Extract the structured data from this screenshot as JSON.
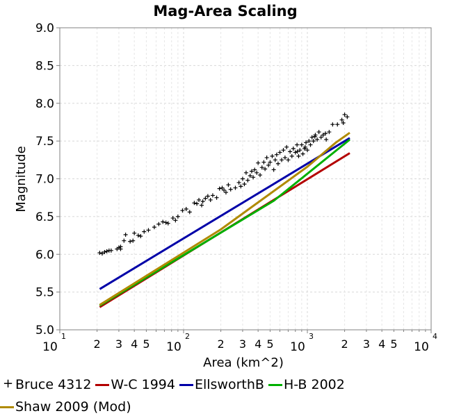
{
  "chart_data": {
    "type": "scatter",
    "title": "Mag-Area Scaling",
    "xlabel": "Area (km^2)",
    "ylabel": "Magnitude",
    "xscale": "log",
    "xlim": [
      10,
      10000
    ],
    "ylim": [
      5.0,
      9.0
    ],
    "yticks": [
      "5.0",
      "5.5",
      "6.0",
      "6.5",
      "7.0",
      "7.5",
      "8.0",
      "8.5",
      "9.0"
    ],
    "xticks_major": [
      {
        "base": "10",
        "exp": "1",
        "value": 10
      },
      {
        "base": "10",
        "exp": "2",
        "value": 100
      },
      {
        "base": "10",
        "exp": "3",
        "value": 1000
      },
      {
        "base": "10",
        "exp": "4",
        "value": 10000
      }
    ],
    "xticks_minor_labels": [
      "2",
      "3",
      "4",
      "5"
    ],
    "grid": true,
    "legend_position": "bottom",
    "series": [
      {
        "name": "Bruce 4312",
        "kind": "scatter",
        "color": "#000000",
        "points": [
          [
            21,
            6.02
          ],
          [
            22,
            6.01
          ],
          [
            23,
            6.03
          ],
          [
            24,
            6.04
          ],
          [
            25,
            6.05
          ],
          [
            26,
            6.05
          ],
          [
            29,
            6.07
          ],
          [
            30,
            6.09
          ],
          [
            31,
            6.1
          ],
          [
            31,
            6.07
          ],
          [
            33,
            6.18
          ],
          [
            34,
            6.26
          ],
          [
            37,
            6.17
          ],
          [
            39,
            6.18
          ],
          [
            40,
            6.28
          ],
          [
            43,
            6.25
          ],
          [
            45,
            6.24
          ],
          [
            48,
            6.3
          ],
          [
            52,
            6.32
          ],
          [
            58,
            6.36
          ],
          [
            63,
            6.4
          ],
          [
            68,
            6.43
          ],
          [
            72,
            6.42
          ],
          [
            75,
            6.41
          ],
          [
            82,
            6.48
          ],
          [
            86,
            6.45
          ],
          [
            90,
            6.5
          ],
          [
            98,
            6.58
          ],
          [
            105,
            6.6
          ],
          [
            112,
            6.56
          ],
          [
            122,
            6.68
          ],
          [
            128,
            6.67
          ],
          [
            133,
            6.72
          ],
          [
            140,
            6.65
          ],
          [
            143,
            6.7
          ],
          [
            150,
            6.74
          ],
          [
            157,
            6.77
          ],
          [
            165,
            6.72
          ],
          [
            172,
            6.78
          ],
          [
            185,
            6.75
          ],
          [
            195,
            6.87
          ],
          [
            205,
            6.88
          ],
          [
            212,
            6.85
          ],
          [
            220,
            6.82
          ],
          [
            230,
            6.92
          ],
          [
            240,
            6.86
          ],
          [
            262,
            6.88
          ],
          [
            280,
            6.95
          ],
          [
            290,
            6.9
          ],
          [
            300,
            7.0
          ],
          [
            310,
            6.93
          ],
          [
            320,
            7.08
          ],
          [
            330,
            6.98
          ],
          [
            345,
            7.04
          ],
          [
            355,
            7.1
          ],
          [
            365,
            7.02
          ],
          [
            375,
            7.12
          ],
          [
            390,
            7.08
          ],
          [
            400,
            7.21
          ],
          [
            415,
            7.05
          ],
          [
            430,
            7.15
          ],
          [
            445,
            7.22
          ],
          [
            455,
            7.13
          ],
          [
            470,
            7.28
          ],
          [
            485,
            7.18
          ],
          [
            500,
            7.22
          ],
          [
            520,
            7.3
          ],
          [
            535,
            7.12
          ],
          [
            550,
            7.25
          ],
          [
            565,
            7.32
          ],
          [
            580,
            7.2
          ],
          [
            600,
            7.35
          ],
          [
            620,
            7.25
          ],
          [
            640,
            7.38
          ],
          [
            660,
            7.28
          ],
          [
            680,
            7.42
          ],
          [
            700,
            7.25
          ],
          [
            725,
            7.36
          ],
          [
            750,
            7.3
          ],
          [
            770,
            7.4
          ],
          [
            800,
            7.35
          ],
          [
            825,
            7.45
          ],
          [
            850,
            7.3
          ],
          [
            870,
            7.38
          ],
          [
            900,
            7.45
          ],
          [
            920,
            7.33
          ],
          [
            950,
            7.4
          ],
          [
            975,
            7.48
          ],
          [
            1000,
            7.38
          ],
          [
            1030,
            7.5
          ],
          [
            1060,
            7.45
          ],
          [
            1090,
            7.55
          ],
          [
            1120,
            7.5
          ],
          [
            1160,
            7.58
          ],
          [
            1200,
            7.52
          ],
          [
            1240,
            7.62
          ],
          [
            1290,
            7.55
          ],
          [
            1340,
            7.58
          ],
          [
            1400,
            7.6
          ],
          [
            1500,
            7.62
          ],
          [
            1600,
            7.72
          ],
          [
            1750,
            7.72
          ],
          [
            1900,
            7.78
          ],
          [
            2000,
            7.85
          ],
          [
            2100,
            7.82
          ],
          [
            1950,
            7.74
          ],
          [
            1420,
            7.52
          ],
          [
            1150,
            7.56
          ],
          [
            960,
            7.42
          ],
          [
            830,
            7.36
          ]
        ]
      },
      {
        "name": "W-C 1994",
        "kind": "line",
        "color": "#b30000",
        "points": [
          [
            21,
            5.3
          ],
          [
            2200,
            7.34
          ]
        ]
      },
      {
        "name": "EllsworthB",
        "kind": "line",
        "color": "#0000a8",
        "points": [
          [
            21,
            5.54
          ],
          [
            2200,
            7.54
          ]
        ]
      },
      {
        "name": "H-B 2002",
        "kind": "line",
        "color": "#00b000",
        "points": [
          [
            21,
            5.32
          ],
          [
            537,
            6.71
          ],
          [
            2200,
            7.52
          ]
        ]
      },
      {
        "name": "Shaw 2009 (Mod)",
        "kind": "line",
        "color": "#b08a00",
        "points": [
          [
            21,
            5.33
          ],
          [
            200,
            6.33
          ],
          [
            1000,
            7.16
          ],
          [
            1700,
            7.48
          ],
          [
            2200,
            7.61
          ]
        ]
      }
    ]
  }
}
